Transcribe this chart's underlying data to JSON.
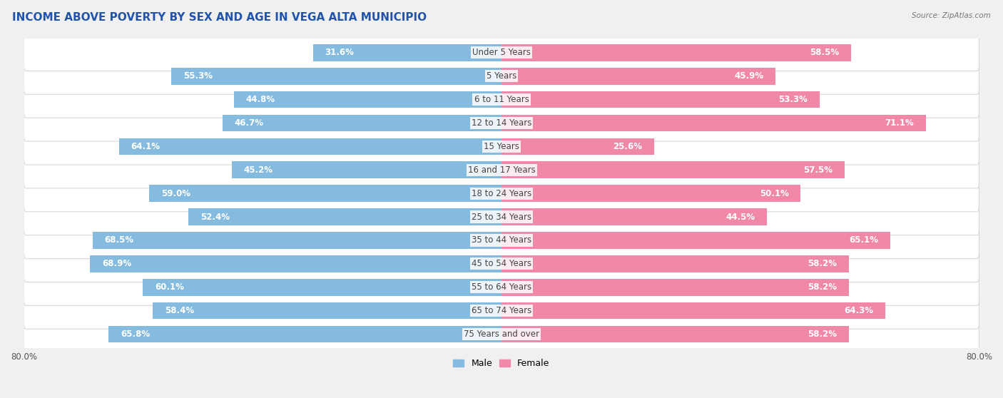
{
  "title": "INCOME ABOVE POVERTY BY SEX AND AGE IN VEGA ALTA MUNICIPIO",
  "source": "Source: ZipAtlas.com",
  "categories": [
    "Under 5 Years",
    "5 Years",
    "6 to 11 Years",
    "12 to 14 Years",
    "15 Years",
    "16 and 17 Years",
    "18 to 24 Years",
    "25 to 34 Years",
    "35 to 44 Years",
    "45 to 54 Years",
    "55 to 64 Years",
    "65 to 74 Years",
    "75 Years and over"
  ],
  "male_values": [
    31.6,
    55.3,
    44.8,
    46.7,
    64.1,
    45.2,
    59.0,
    52.4,
    68.5,
    68.9,
    60.1,
    58.4,
    65.8
  ],
  "female_values": [
    58.5,
    45.9,
    53.3,
    71.1,
    25.6,
    57.5,
    50.1,
    44.5,
    65.1,
    58.2,
    58.2,
    64.3,
    58.2
  ],
  "male_color": "#85BBDE",
  "female_color": "#F088A8",
  "male_label": "Male",
  "female_label": "Female",
  "xlim": 80.0,
  "background_color": "#f0f0f0",
  "row_bg_color": "#ffffff",
  "row_border_color": "#d8d8d8",
  "title_fontsize": 11,
  "cat_fontsize": 8.5,
  "value_fontsize": 8.5,
  "axis_label_fontsize": 8.5
}
